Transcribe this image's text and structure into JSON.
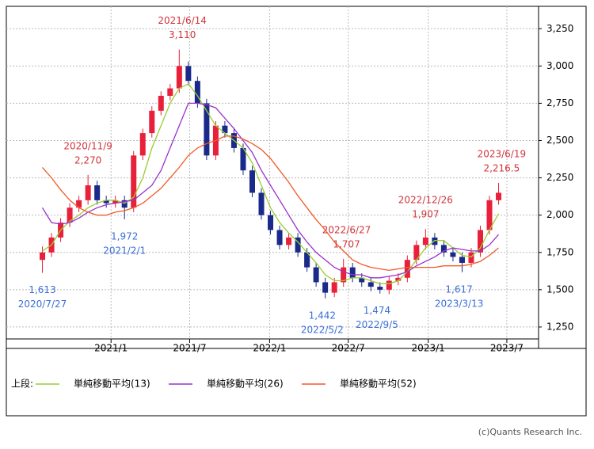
{
  "chart_data": {
    "type": "candlestick",
    "x": [
      "2020/7/27",
      "2020/8/17",
      "2020/9/7",
      "2020/9/28",
      "2020/10/19",
      "2020/11/9",
      "2020/11/30",
      "2020/12/21",
      "2021/1/11",
      "2021/2/1",
      "2021/2/22",
      "2021/3/15",
      "2021/4/5",
      "2021/4/26",
      "2021/5/17",
      "2021/6/7",
      "2021/6/28",
      "2021/7/19",
      "2021/8/9",
      "2021/8/30",
      "2021/9/20",
      "2021/10/11",
      "2021/11/1",
      "2021/11/22",
      "2021/12/13",
      "2022/1/3",
      "2022/1/24",
      "2022/2/14",
      "2022/3/7",
      "2022/3/28",
      "2022/4/18",
      "2022/5/9",
      "2022/5/30",
      "2022/6/20",
      "2022/7/11",
      "2022/8/1",
      "2022/8/22",
      "2022/9/12",
      "2022/10/3",
      "2022/10/24",
      "2022/11/14",
      "2022/12/5",
      "2022/12/26",
      "2023/1/16",
      "2023/2/6",
      "2023/2/27",
      "2023/3/20",
      "2023/4/10",
      "2023/5/1",
      "2023/5/22",
      "2023/6/12"
    ],
    "open": [
      1700,
      1750,
      1850,
      1950,
      2050,
      2100,
      2200,
      2100,
      2080,
      2100,
      2050,
      2400,
      2550,
      2700,
      2800,
      2850,
      3000,
      2900,
      2750,
      2400,
      2600,
      2550,
      2450,
      2300,
      2150,
      2000,
      1900,
      1800,
      1850,
      1750,
      1650,
      1550,
      1480,
      1550,
      1650,
      1580,
      1550,
      1520,
      1500,
      1560,
      1580,
      1700,
      1800,
      1850,
      1800,
      1750,
      1720,
      1680,
      1750,
      1900,
      2100
    ],
    "high": [
      1790,
      1880,
      1980,
      2080,
      2130,
      2270,
      2230,
      2130,
      2130,
      2130,
      2430,
      2580,
      2730,
      2830,
      2880,
      3110,
      3030,
      2930,
      2780,
      2630,
      2630,
      2580,
      2480,
      2330,
      2180,
      2030,
      1930,
      1880,
      1880,
      1780,
      1680,
      1580,
      1580,
      1707,
      1680,
      1610,
      1580,
      1550,
      1590,
      1610,
      1730,
      1830,
      1907,
      1880,
      1830,
      1780,
      1750,
      1780,
      1930,
      2130,
      2216.5
    ],
    "low": [
      1613,
      1720,
      1820,
      1920,
      2020,
      2070,
      2070,
      2050,
      2050,
      1972,
      2020,
      2370,
      2520,
      2670,
      2770,
      2820,
      2870,
      2720,
      2370,
      2370,
      2520,
      2420,
      2270,
      2120,
      1970,
      1870,
      1770,
      1770,
      1720,
      1620,
      1520,
      1442,
      1450,
      1520,
      1550,
      1520,
      1490,
      1474,
      1470,
      1530,
      1550,
      1670,
      1770,
      1770,
      1720,
      1690,
      1617,
      1650,
      1720,
      1870,
      2070
    ],
    "close": [
      1750,
      1850,
      1950,
      2050,
      2100,
      2200,
      2100,
      2080,
      2100,
      2050,
      2400,
      2550,
      2700,
      2800,
      2850,
      3000,
      2900,
      2750,
      2400,
      2600,
      2550,
      2450,
      2300,
      2150,
      2000,
      1900,
      1800,
      1850,
      1750,
      1650,
      1550,
      1480,
      1550,
      1650,
      1580,
      1550,
      1520,
      1500,
      1560,
      1580,
      1700,
      1800,
      1850,
      1800,
      1750,
      1720,
      1680,
      1750,
      1900,
      2100,
      2150
    ],
    "up_color": "#e8203a",
    "down_color": "#1a2a8a",
    "series": [
      {
        "name": "単純移動平均(13)",
        "color": "#9acd32",
        "values": [
          1760,
          1800,
          1900,
          1960,
          2000,
          2050,
          2080,
          2100,
          2100,
          2080,
          2120,
          2250,
          2450,
          2600,
          2750,
          2850,
          2880,
          2800,
          2700,
          2600,
          2550,
          2500,
          2450,
          2350,
          2200,
          2050,
          1950,
          1880,
          1820,
          1750,
          1680,
          1600,
          1560,
          1560,
          1580,
          1580,
          1560,
          1540,
          1540,
          1560,
          1620,
          1700,
          1780,
          1830,
          1830,
          1780,
          1730,
          1720,
          1780,
          1900,
          2010
        ]
      },
      {
        "name": "単純移動平均(26)",
        "color": "#9932cc",
        "values": [
          2050,
          1950,
          1940,
          1950,
          1980,
          2020,
          2050,
          2070,
          2080,
          2090,
          2100,
          2150,
          2200,
          2300,
          2450,
          2600,
          2750,
          2750,
          2740,
          2720,
          2650,
          2580,
          2500,
          2420,
          2300,
          2200,
          2100,
          2000,
          1900,
          1820,
          1750,
          1700,
          1650,
          1620,
          1600,
          1600,
          1580,
          1580,
          1590,
          1600,
          1620,
          1660,
          1690,
          1720,
          1760,
          1780,
          1770,
          1760,
          1760,
          1800,
          1870
        ]
      },
      {
        "name": "単純移動平均(52)",
        "color": "#f05a28",
        "values": [
          2320,
          2250,
          2170,
          2100,
          2050,
          2020,
          2000,
          2000,
          2020,
          2030,
          2050,
          2080,
          2130,
          2180,
          2250,
          2320,
          2400,
          2450,
          2480,
          2500,
          2530,
          2530,
          2510,
          2480,
          2440,
          2380,
          2300,
          2220,
          2130,
          2050,
          1970,
          1900,
          1820,
          1760,
          1700,
          1670,
          1650,
          1640,
          1630,
          1640,
          1650,
          1650,
          1650,
          1650,
          1660,
          1660,
          1660,
          1670,
          1690,
          1730,
          1780
        ]
      }
    ],
    "xlim": [
      "2020/5/5",
      "2023/9/12"
    ],
    "xticks": [
      "2021/1",
      "2021/7",
      "2022/1",
      "2022/7",
      "2023/1",
      "2023/7"
    ],
    "ylim": [
      1170,
      3400
    ],
    "yticks": [
      {
        "value": 1250,
        "label": "1,250"
      },
      {
        "value": 1500,
        "label": "1,500"
      },
      {
        "value": 1750,
        "label": "1,750"
      },
      {
        "value": 2000,
        "label": "2,000"
      },
      {
        "value": 2250,
        "label": "2,250"
      },
      {
        "value": 2500,
        "label": "2,500"
      },
      {
        "value": 2750,
        "label": "2,750"
      },
      {
        "value": 3000,
        "label": "3,000"
      },
      {
        "value": 3250,
        "label": "3,250"
      }
    ],
    "grid": true,
    "annotations": [
      {
        "date": "2021/6/14",
        "value": 3110,
        "label": "3,110",
        "color": "#d0343c",
        "position": "above"
      },
      {
        "date": "2020/11/9",
        "value": 2270,
        "label": "2,270",
        "color": "#d0343c",
        "position": "above"
      },
      {
        "date": "2022/6/27",
        "value": 1707,
        "label": "1,707",
        "color": "#d0343c",
        "position": "above"
      },
      {
        "date": "2022/12/26",
        "value": 1907,
        "label": "1,907",
        "color": "#d0343c",
        "position": "above"
      },
      {
        "date": "2023/6/19",
        "value": 2216.5,
        "label": "2,216.5",
        "color": "#d0343c",
        "position": "above"
      },
      {
        "date": "2020/7/27",
        "value": 1613,
        "label": "1,613",
        "color": "#3b6fd8",
        "position": "below"
      },
      {
        "date": "2021/2/1",
        "value": 1972,
        "label": "1,972",
        "color": "#3b6fd8",
        "position": "below"
      },
      {
        "date": "2022/5/2",
        "value": 1442,
        "label": "1,442",
        "color": "#3b6fd8",
        "position": "below"
      },
      {
        "date": "2022/9/5",
        "value": 1474,
        "label": "1,474",
        "color": "#3b6fd8",
        "position": "below"
      },
      {
        "date": "2023/3/13",
        "value": 1617,
        "label": "1,617",
        "color": "#3b6fd8",
        "position": "below"
      }
    ],
    "legend_title": "上段:",
    "credit": "(c)Quants Research Inc."
  }
}
